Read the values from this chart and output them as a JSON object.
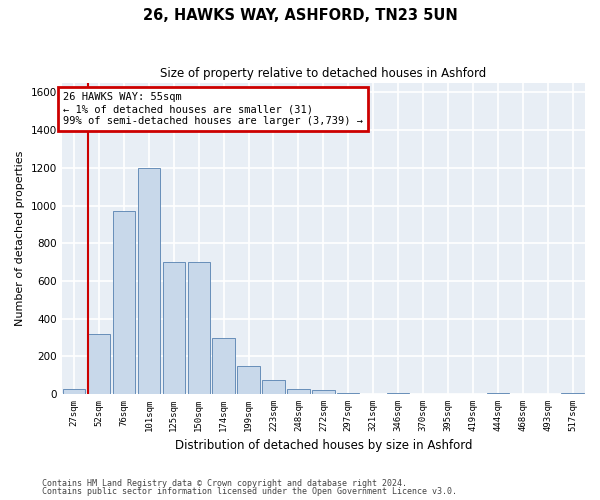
{
  "title": "26, HAWKS WAY, ASHFORD, TN23 5UN",
  "subtitle": "Size of property relative to detached houses in Ashford",
  "xlabel": "Distribution of detached houses by size in Ashford",
  "ylabel": "Number of detached properties",
  "bins": [
    "27sqm",
    "52sqm",
    "76sqm",
    "101sqm",
    "125sqm",
    "150sqm",
    "174sqm",
    "199sqm",
    "223sqm",
    "248sqm",
    "272sqm",
    "297sqm",
    "321sqm",
    "346sqm",
    "370sqm",
    "395sqm",
    "419sqm",
    "444sqm",
    "468sqm",
    "493sqm",
    "517sqm"
  ],
  "bar_heights": [
    25,
    320,
    970,
    1200,
    700,
    700,
    300,
    150,
    75,
    25,
    20,
    5,
    0,
    5,
    0,
    0,
    0,
    5,
    0,
    0,
    5
  ],
  "bar_color": "#c8d8ea",
  "bar_edge_color": "#5580b0",
  "vline_x_idx": 1,
  "vline_color": "#cc0000",
  "annotation_text": "26 HAWKS WAY: 55sqm\n← 1% of detached houses are smaller (31)\n99% of semi-detached houses are larger (3,739) →",
  "annotation_box_edgecolor": "#cc0000",
  "annotation_bg": "#ffffff",
  "ylim": [
    0,
    1650
  ],
  "yticks": [
    0,
    200,
    400,
    600,
    800,
    1000,
    1200,
    1400,
    1600
  ],
  "bg_color": "#e8eef5",
  "grid_color": "#ffffff",
  "footnote_line1": "Contains HM Land Registry data © Crown copyright and database right 2024.",
  "footnote_line2": "Contains public sector information licensed under the Open Government Licence v3.0."
}
